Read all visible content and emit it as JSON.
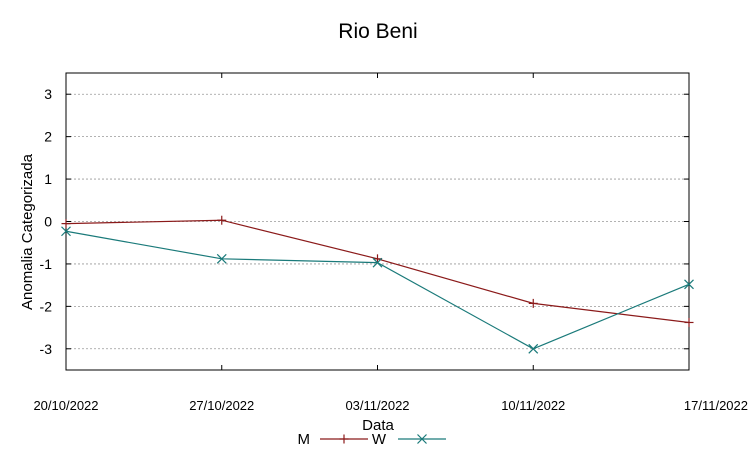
{
  "chart_data": {
    "type": "line",
    "title": "Rio Beni",
    "xlabel": "Data",
    "ylabel": "Anomalia Categorizada",
    "categories": [
      "20/10/2022",
      "27/10/2022",
      "03/11/2022",
      "10/11/2022",
      "17/11/2022"
    ],
    "yticks": [
      "3",
      "2",
      "1",
      "0",
      "-1",
      "-2",
      "-3"
    ],
    "ytick_values": [
      3,
      2,
      1,
      0,
      -1,
      -2,
      -3
    ],
    "ylim": [
      -3.5,
      3.5
    ],
    "grid": true,
    "legend_position": "bottom-center",
    "series": [
      {
        "name": "M",
        "color": "#8b1a1a",
        "marker": "plus",
        "values": [
          -0.05,
          0.03,
          -0.88,
          -1.93,
          -2.38
        ]
      },
      {
        "name": "W",
        "color": "#1a7a7a",
        "marker": "cross",
        "values": [
          -0.23,
          -0.88,
          -0.97,
          -3.0,
          -1.48
        ]
      }
    ]
  }
}
